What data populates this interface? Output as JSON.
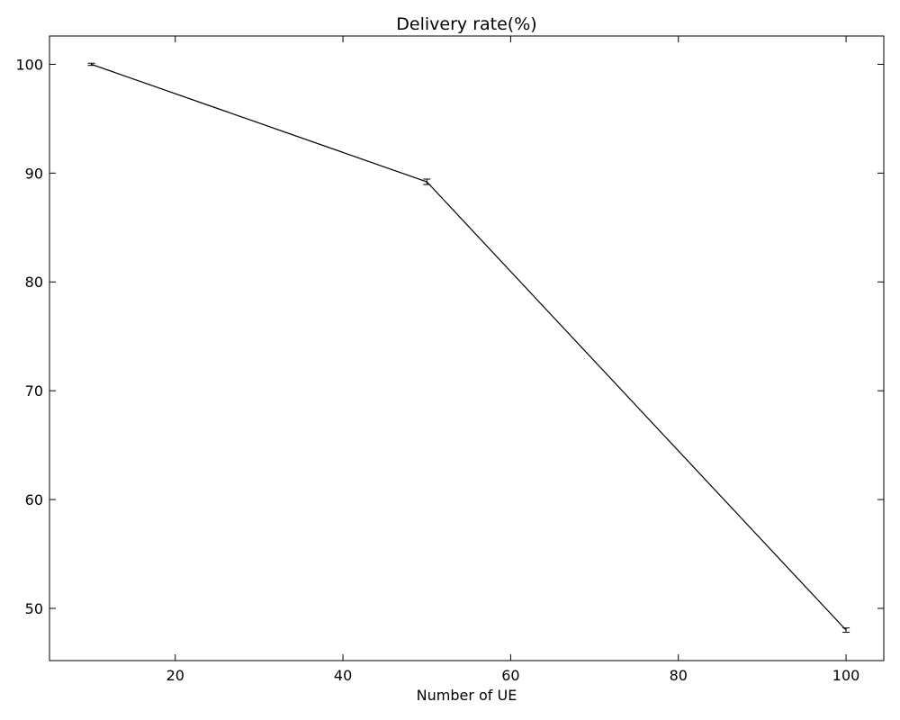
{
  "chart_data": {
    "type": "line",
    "title": "Delivery rate(%)",
    "xlabel": "Number of UE",
    "ylabel": "",
    "xlim": [
      5,
      104.5
    ],
    "ylim": [
      45.2,
      102.6
    ],
    "xticks": [
      20,
      40,
      60,
      80,
      100
    ],
    "yticks": [
      50,
      60,
      70,
      80,
      90,
      100
    ],
    "grid": false,
    "series": [
      {
        "x": [
          10,
          50,
          100
        ],
        "y": [
          100.0,
          89.2,
          48.0
        ],
        "error": [
          0.1,
          0.25,
          0.2
        ],
        "color": "#000000"
      }
    ]
  }
}
